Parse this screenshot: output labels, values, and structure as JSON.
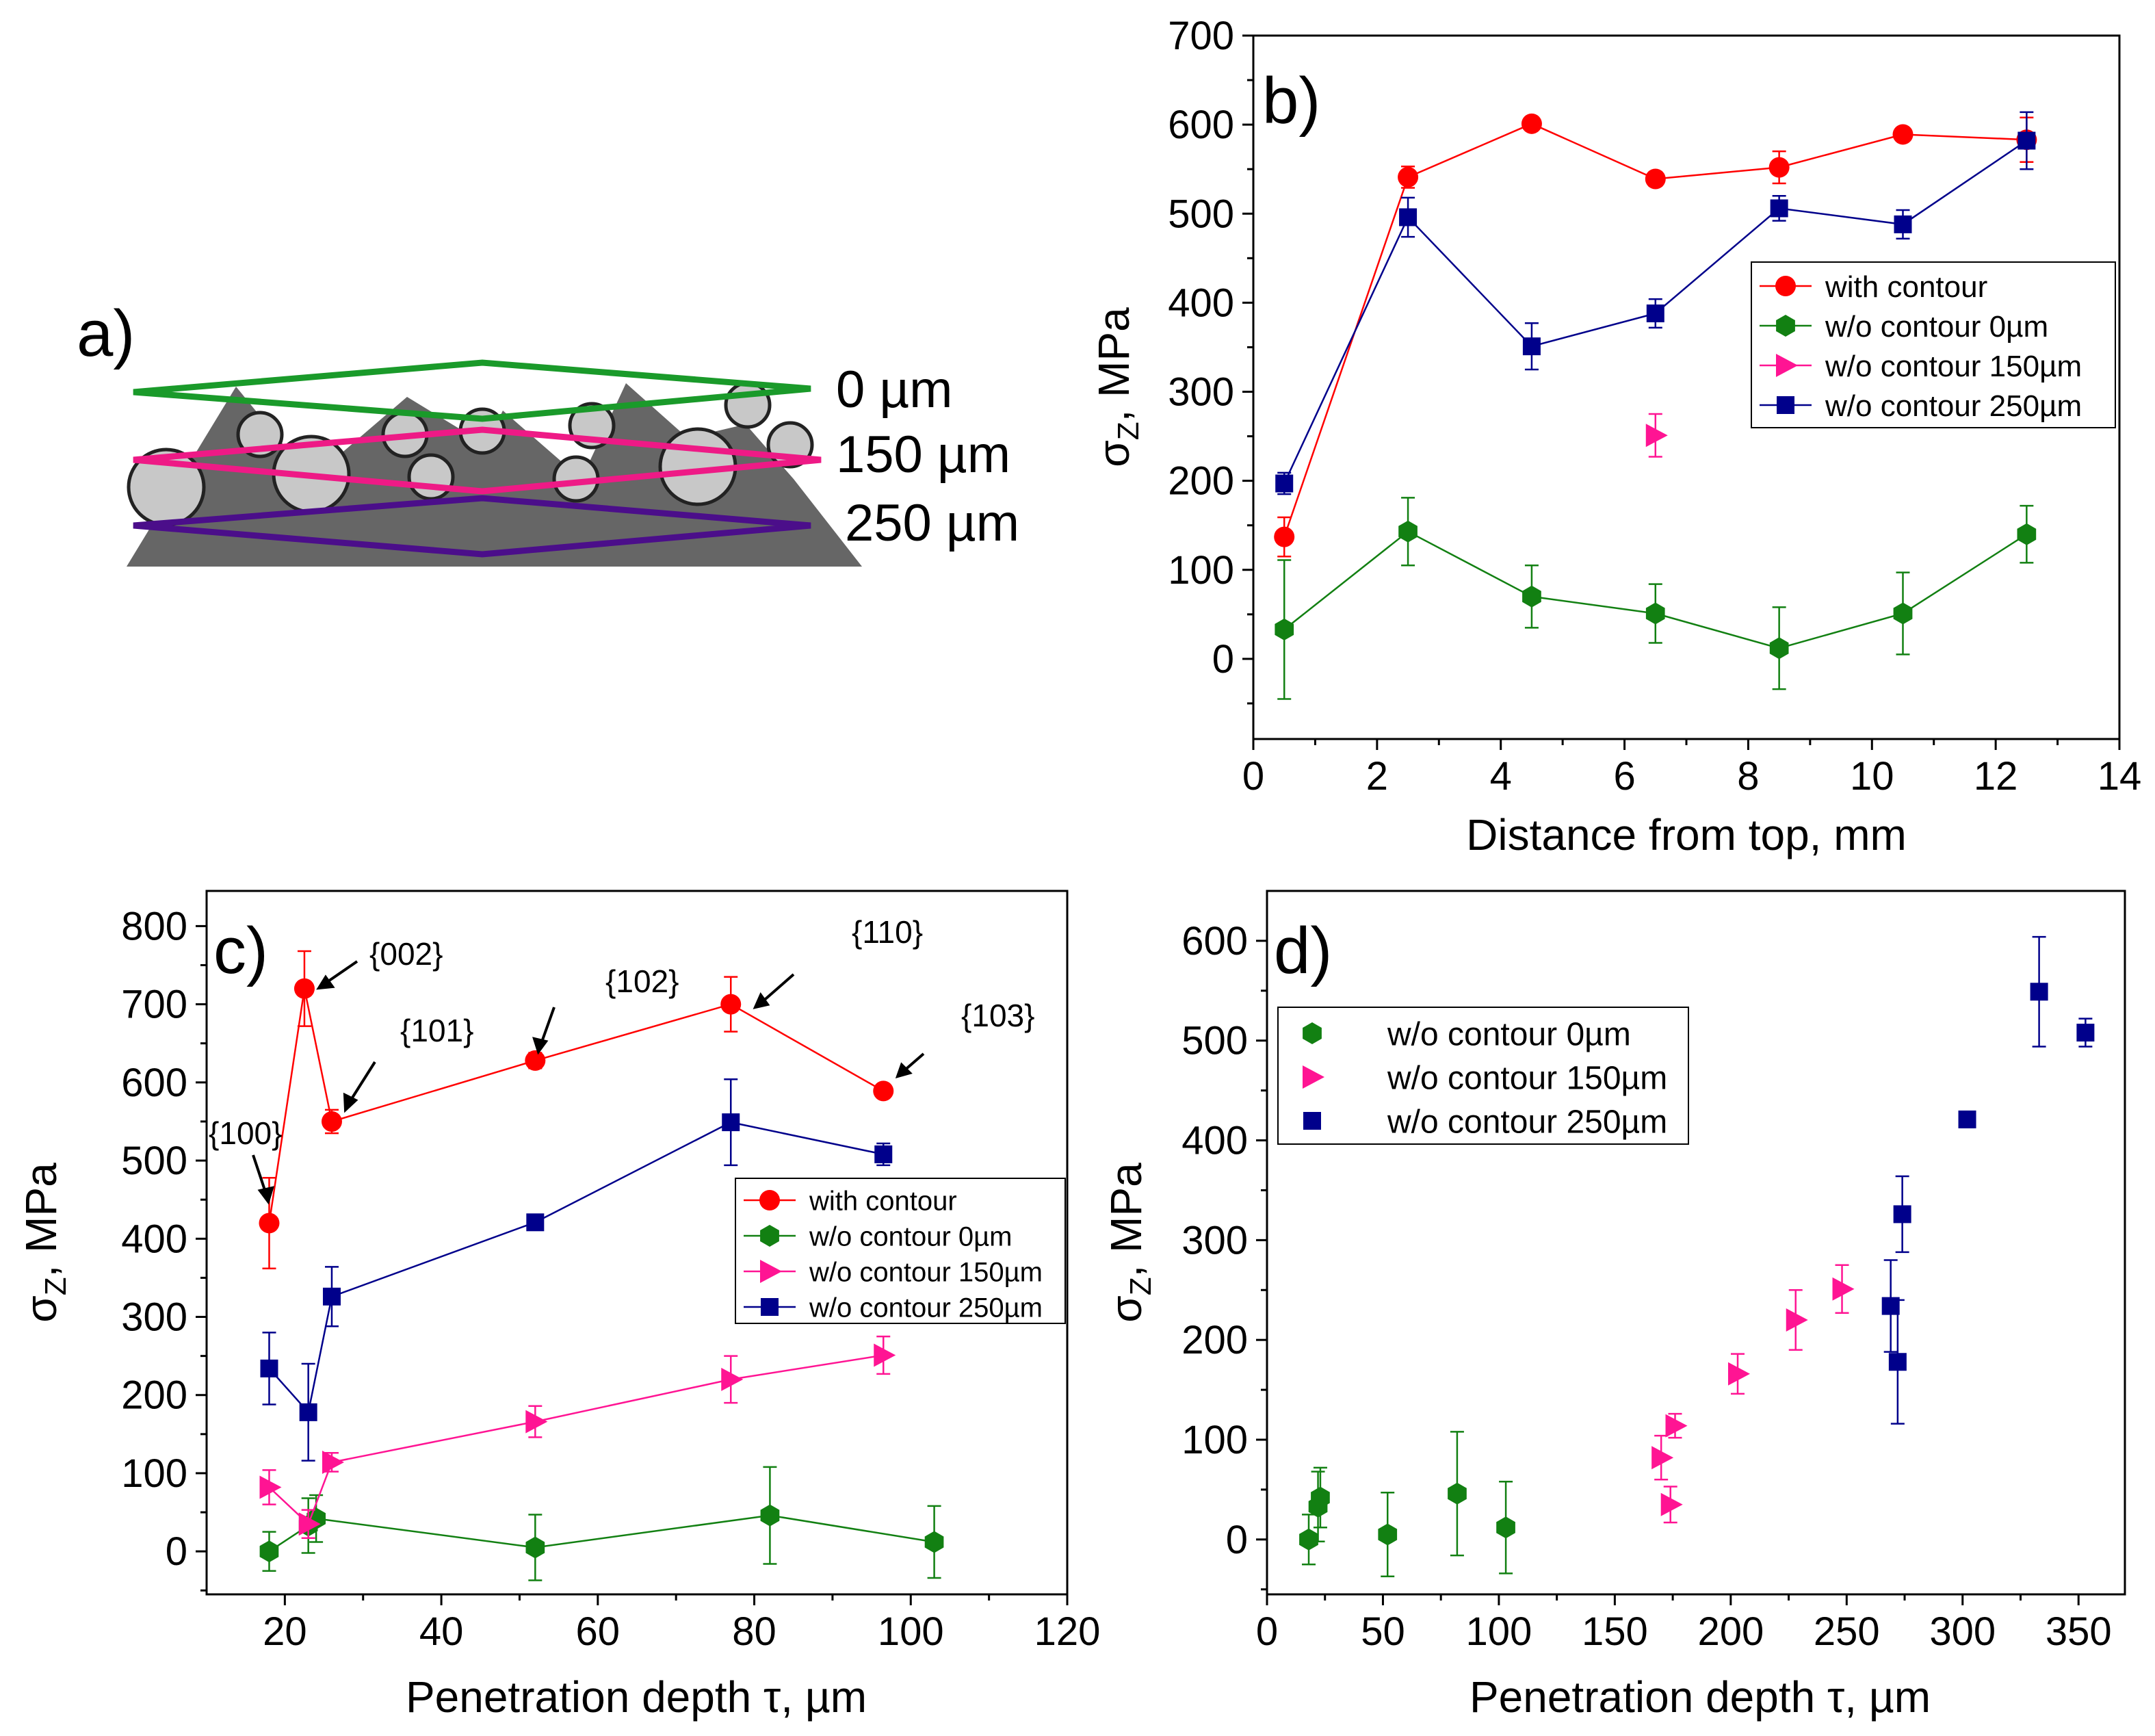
{
  "colors": {
    "with_contour": "#ff0000",
    "c0": "#128012",
    "c150": "#ff1493",
    "c250": "#00008b",
    "slab": "#666666"
  },
  "panel_a": {
    "label": "a)",
    "layers": [
      "0 µm",
      "150 µm",
      "250 µm"
    ]
  },
  "chart_data": [
    {
      "id": "b",
      "type": "line",
      "panel_label": "b)",
      "xlabel": "Distance from top, mm",
      "ylabel_main": "σ",
      "ylabel_sub": "Z",
      "ylabel_rest": ", MPa",
      "xlim": [
        0,
        14
      ],
      "ylim": [
        -90,
        700
      ],
      "xticks": [
        0,
        2,
        4,
        6,
        8,
        10,
        12,
        14
      ],
      "yticks": [
        0,
        100,
        200,
        300,
        400,
        500,
        600,
        700
      ],
      "legend": [
        "with contour",
        "w/o contour 0µm",
        "w/o contour 150µm",
        "w/o contour 250µm"
      ],
      "series": [
        {
          "name": "with contour",
          "marker": "circle",
          "color": "#ff0000",
          "line": true,
          "x": [
            0.5,
            2.5,
            4.5,
            6.5,
            8.5,
            10.5,
            12.5
          ],
          "y": [
            137,
            541,
            601,
            539,
            552,
            589,
            583
          ],
          "err": [
            22,
            12,
            5,
            8,
            18,
            7,
            25
          ]
        },
        {
          "name": "w/o contour 0µm",
          "marker": "hexagon",
          "color": "#128012",
          "line": true,
          "x": [
            0.5,
            2.5,
            4.5,
            6.5,
            8.5,
            10.5,
            12.5
          ],
          "y": [
            33,
            143,
            70,
            51,
            12,
            51,
            140
          ],
          "err": [
            78,
            38,
            35,
            33,
            46,
            46,
            32
          ]
        },
        {
          "name": "w/o contour 150µm",
          "marker": "triangle",
          "color": "#ff1493",
          "line": false,
          "x": [
            6.5
          ],
          "y": [
            251
          ],
          "err": [
            24
          ]
        },
        {
          "name": "w/o contour 250µm",
          "marker": "square",
          "color": "#00008b",
          "line": true,
          "x": [
            0.5,
            2.5,
            4.5,
            6.5,
            8.5,
            10.5,
            12.5
          ],
          "y": [
            197,
            496,
            351,
            388,
            506,
            488,
            582
          ],
          "err": [
            12,
            22,
            26,
            16,
            14,
            16,
            32
          ]
        }
      ]
    },
    {
      "id": "c",
      "type": "line",
      "panel_label": "c)",
      "xlabel": "Penetration depth τ, µm",
      "ylabel_main": "σ",
      "ylabel_sub": "Z",
      "ylabel_rest": ", MPa",
      "xlim": [
        10,
        120
      ],
      "ylim": [
        -55,
        845
      ],
      "xticks": [
        20,
        40,
        60,
        80,
        100,
        120
      ],
      "yticks": [
        0,
        100,
        200,
        300,
        400,
        500,
        600,
        700,
        800
      ],
      "legend": [
        "with contour",
        "w/o contour 0µm",
        "w/o contour 150µm",
        "w/o contour 250µm"
      ],
      "annotations": [
        "{100}",
        "{002}",
        "{101}",
        "{102}",
        "{110}",
        "{103}"
      ],
      "series": [
        {
          "name": "with contour",
          "marker": "circle",
          "color": "#ff0000",
          "line": true,
          "x": [
            18,
            22.5,
            26,
            52,
            77,
            96.5
          ],
          "y": [
            420,
            720,
            550,
            628,
            700,
            589
          ],
          "err": [
            58,
            48,
            15,
            10,
            35,
            8
          ]
        },
        {
          "name": "w/o contour 0µm",
          "marker": "hexagon",
          "color": "#128012",
          "line": true,
          "x": [
            18,
            23,
            24,
            52,
            82,
            103
          ],
          "y": [
            0,
            33,
            42,
            5,
            46,
            12
          ],
          "err": [
            25,
            35,
            30,
            42,
            62,
            46
          ]
        },
        {
          "name": "w/o contour 150µm",
          "marker": "triangle",
          "color": "#ff1493",
          "line": true,
          "x": [
            18,
            23,
            26,
            52,
            77,
            96.5
          ],
          "y": [
            82,
            35,
            114,
            166,
            220,
            251
          ],
          "err": [
            22,
            18,
            12,
            20,
            30,
            24
          ]
        },
        {
          "name": "w/o contour 250µm",
          "marker": "square",
          "color": "#00008b",
          "line": true,
          "x": [
            18,
            23,
            26,
            52,
            77,
            96.5
          ],
          "y": [
            234,
            178,
            326,
            421,
            549,
            508
          ],
          "err": [
            46,
            62,
            38,
            8,
            55,
            14
          ]
        }
      ]
    },
    {
      "id": "d",
      "type": "scatter",
      "panel_label": "d)",
      "xlabel": "Penetration depth τ, µm",
      "ylabel_main": "σ",
      "ylabel_sub": "Z",
      "ylabel_rest": ", MPa",
      "xlim": [
        0,
        370
      ],
      "ylim": [
        -55,
        650
      ],
      "xticks": [
        0,
        50,
        100,
        150,
        200,
        250,
        300,
        350
      ],
      "yticks": [
        0,
        100,
        200,
        300,
        400,
        500,
        600
      ],
      "legend": [
        "w/o contour 0µm",
        "w/o contour 150µm",
        "w/o contour 250µm"
      ],
      "series": [
        {
          "name": "w/o contour 0µm",
          "marker": "hexagon",
          "color": "#128012",
          "line": false,
          "x": [
            18,
            22,
            23,
            52,
            82,
            103
          ],
          "y": [
            0,
            33,
            42,
            5,
            46,
            12
          ],
          "err": [
            25,
            35,
            30,
            42,
            62,
            46
          ]
        },
        {
          "name": "w/o contour 150µm",
          "marker": "triangle",
          "color": "#ff1493",
          "line": false,
          "x": [
            170,
            174,
            176,
            203,
            228,
            248
          ],
          "y": [
            82,
            35,
            114,
            166,
            220,
            251
          ],
          "err": [
            22,
            18,
            12,
            20,
            30,
            24
          ]
        },
        {
          "name": "w/o contour 250µm",
          "marker": "square",
          "color": "#00008b",
          "line": false,
          "x": [
            269,
            272,
            274,
            302,
            333,
            353
          ],
          "y": [
            234,
            178,
            326,
            421,
            549,
            508
          ],
          "err": [
            46,
            62,
            38,
            8,
            55,
            14
          ]
        }
      ]
    }
  ]
}
